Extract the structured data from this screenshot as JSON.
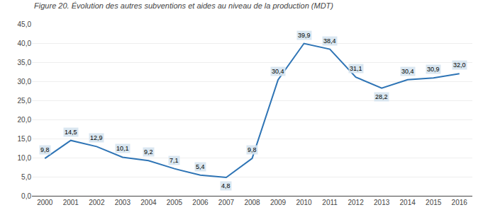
{
  "chart_data": {
    "type": "line",
    "title": "Figure 20. Évolution des autres subventions et aides au niveau de la production (MDT)",
    "x": [
      2000,
      2001,
      2002,
      2003,
      2004,
      2005,
      2006,
      2007,
      2008,
      2009,
      2010,
      2011,
      2012,
      2013,
      2014,
      2015,
      2016
    ],
    "values": [
      9.8,
      14.5,
      12.9,
      10.1,
      9.2,
      7.1,
      5.4,
      4.8,
      9.8,
      30.4,
      39.9,
      38.4,
      31.1,
      28.2,
      30.4,
      30.9,
      32.0
    ],
    "value_labels": [
      "9,8",
      "14,5",
      "12,9",
      "10,1",
      "9,2",
      "7,1",
      "5,4",
      "4,8",
      "9,8",
      "30,4",
      "39,9",
      "38,4",
      "31,1",
      "28,2",
      "30,4",
      "30,9",
      "32,0"
    ],
    "data_labels": true,
    "color": "#2E74B5",
    "xlim": [
      1999.5,
      2016.5
    ],
    "xticks": [
      2000,
      2001,
      2002,
      2003,
      2004,
      2005,
      2006,
      2007,
      2008,
      2009,
      2010,
      2011,
      2012,
      2013,
      2014,
      2015,
      2016
    ],
    "ylim": [
      0,
      45
    ],
    "yticks": [
      {
        "value": 0.0,
        "label": "0,0"
      },
      {
        "value": 5.0,
        "label": "5,0"
      },
      {
        "value": 10.0,
        "label": "10,0"
      },
      {
        "value": 15.0,
        "label": "15,0"
      },
      {
        "value": 20.0,
        "label": "20,0"
      },
      {
        "value": 25.0,
        "label": "25,0"
      },
      {
        "value": 30.0,
        "label": "30,0"
      },
      {
        "value": 35.0,
        "label": "35,0"
      },
      {
        "value": 40.0,
        "label": "40,0"
      },
      {
        "value": 45.0,
        "label": "45,0"
      }
    ],
    "grid": true
  }
}
